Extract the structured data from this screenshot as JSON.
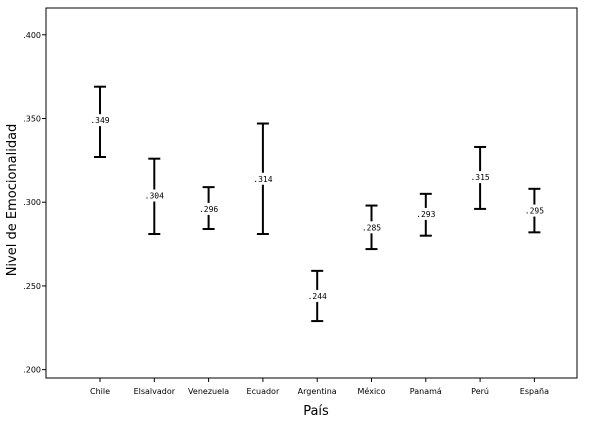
{
  "chart_data": {
    "type": "errorbar",
    "xlabel": "País",
    "ylabel": "Nivel de Emocionalidad",
    "ylim": [
      0.195,
      0.416
    ],
    "yticks": [
      0.2,
      0.25,
      0.3,
      0.35,
      0.4
    ],
    "ytick_labels": [
      ".200",
      ".250",
      ".300",
      ".350",
      ".400"
    ],
    "grid": false,
    "categories": [
      "Chile",
      "Elsalvador",
      "Venezuela",
      "Ecuador",
      "Argentina",
      "México",
      "Panamá",
      "Perú",
      "España"
    ],
    "values": [
      0.349,
      0.304,
      0.296,
      0.314,
      0.244,
      0.285,
      0.293,
      0.315,
      0.295
    ],
    "value_labels": [
      ".349",
      ".304",
      ".296",
      ".314",
      ".244",
      ".285",
      ".293",
      ".315",
      ".295"
    ],
    "lower": [
      0.327,
      0.281,
      0.284,
      0.281,
      0.229,
      0.272,
      0.28,
      0.296,
      0.282
    ],
    "upper": [
      0.369,
      0.326,
      0.309,
      0.347,
      0.259,
      0.298,
      0.305,
      0.333,
      0.308
    ]
  }
}
